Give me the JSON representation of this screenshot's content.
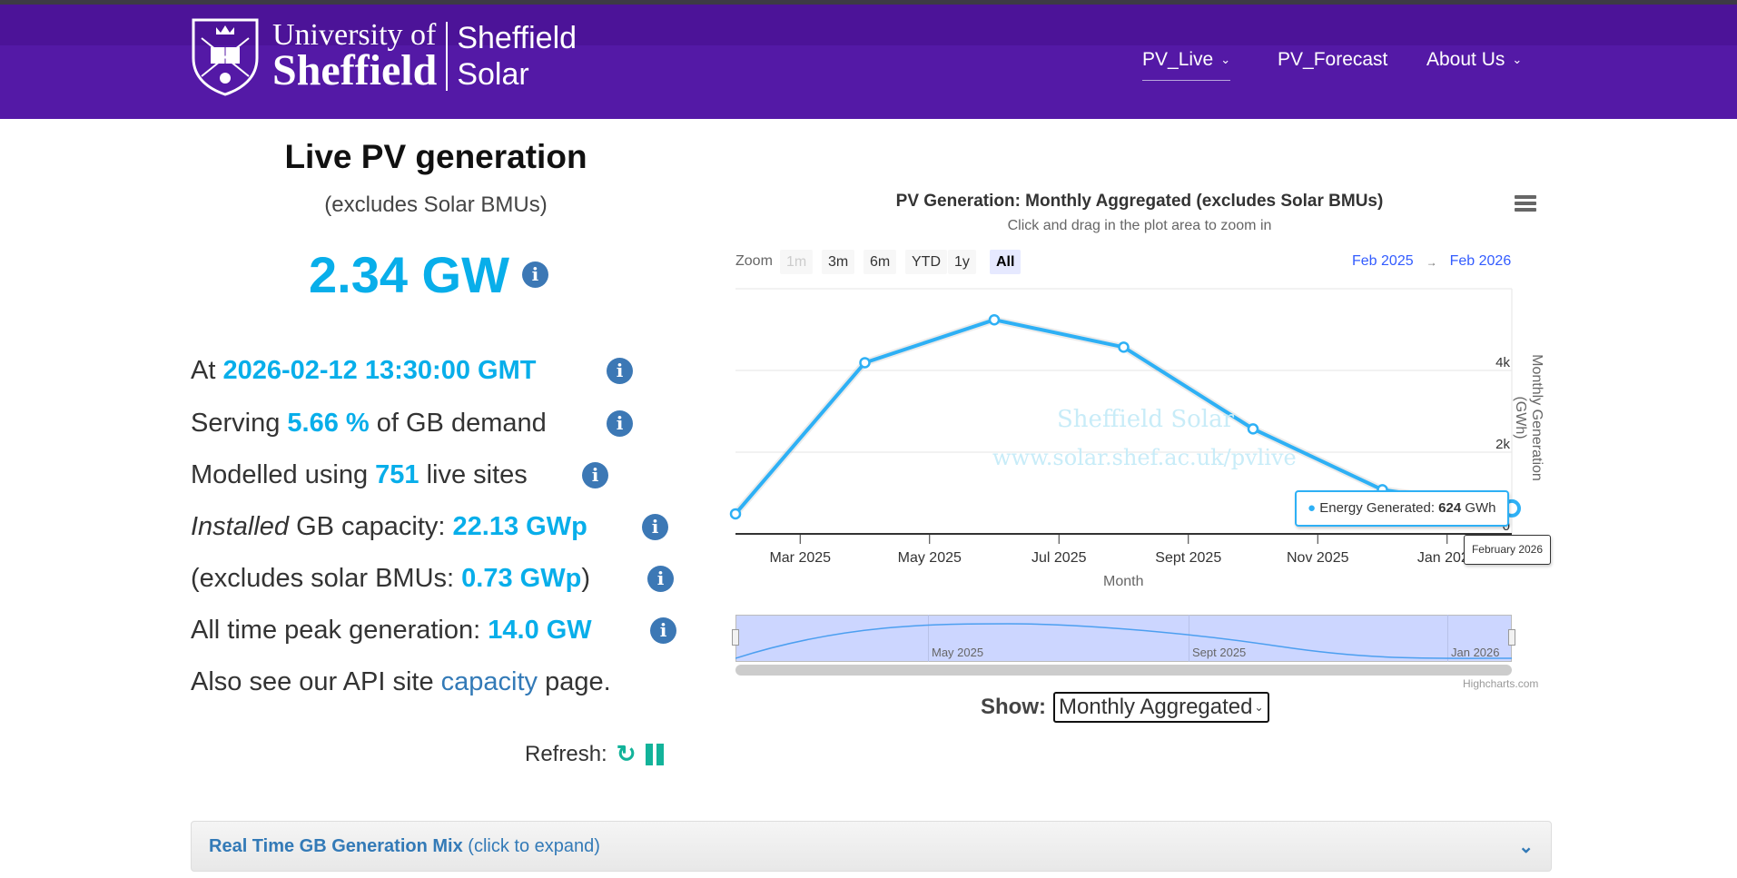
{
  "header": {
    "logo_line1": "University of",
    "logo_line2": "Sheffield",
    "brand_line1": "Sheffield",
    "brand_line2": "Solar",
    "nav": [
      {
        "label": "PV_Live"
      },
      {
        "label": "PV_Forecast"
      },
      {
        "label": "About Us"
      }
    ]
  },
  "summary": {
    "title": "Live PV generation",
    "subtitle": "(excludes Solar BMUs)",
    "value": "2.34 GW",
    "at_label": "At",
    "timestamp": "2026-02-12 13:30:00 GMT",
    "serving_pre": "Serving",
    "serving_val": "5.66 %",
    "serving_post": "of GB demand",
    "modelled_pre": "Modelled using",
    "modelled_val": "751",
    "modelled_post": "live sites",
    "installed_em": "Installed",
    "installed_pre": "GB capacity:",
    "installed_val": "22.13 GWp",
    "excl_pre": "(excludes solar BMUs:",
    "excl_val": "0.73 GWp",
    "excl_post": ")",
    "peak_pre": "All time peak generation:",
    "peak_val": "14.0 GW",
    "also_pre": "Also see our API site",
    "also_link": "capacity",
    "also_post": "page.",
    "refresh_label": "Refresh:"
  },
  "chart_controls": {
    "zoom_label": "Zoom",
    "zoom_buttons": [
      "1m",
      "3m",
      "6m",
      "YTD",
      "1y",
      "All"
    ],
    "selected": "All",
    "range_from": "Feb 2025",
    "range_arrow": "→",
    "range_to": "Feb 2026",
    "navigator_labels": [
      "May 2025",
      "Sept 2025",
      "Jan 2026"
    ],
    "credits": "Highcharts.com",
    "show_label": "Show:",
    "show_value": "Monthly Aggregated",
    "watermark1": "Sheffield Solar",
    "watermark2": "www.solar.shef.ac.uk/pvlive"
  },
  "chart_data": {
    "type": "line",
    "title": "PV Generation: Monthly Aggregated (excludes Solar BMUs)",
    "subtitle": "Click and drag in the plot area to zoom in",
    "xlabel": "Month",
    "ylabel": "Monthly Generation (GWh)",
    "series": [
      {
        "name": "Energy Generated",
        "unit": "GWh",
        "color": "#2eb0f5",
        "x": [
          "2025-02",
          "2025-04",
          "2025-06",
          "2025-08",
          "2025-10",
          "2025-12",
          "2026-02"
        ],
        "values": [
          490,
          4190,
          5240,
          4570,
          2570,
          1080,
          624
        ]
      }
    ],
    "ylim": [
      0,
      6000
    ],
    "yticks": [
      {
        "v": 0,
        "label": "0"
      },
      {
        "v": 2000,
        "label": "2k"
      },
      {
        "v": 4000,
        "label": "4k"
      }
    ],
    "xticks": [
      {
        "m": 1,
        "label": "Mar 2025"
      },
      {
        "m": 3,
        "label": "May 2025"
      },
      {
        "m": 5,
        "label": "Jul 2025"
      },
      {
        "m": 7,
        "label": "Sept 2025"
      },
      {
        "m": 9,
        "label": "Nov 2025"
      },
      {
        "m": 11,
        "label": "Jan 2026"
      }
    ],
    "tooltip": {
      "series": "Energy Generated:",
      "value": "624",
      "unit": "GWh",
      "header": "February 2026"
    }
  },
  "accordion": {
    "title": "Real Time GB Generation Mix",
    "hint": "(click to expand)"
  }
}
